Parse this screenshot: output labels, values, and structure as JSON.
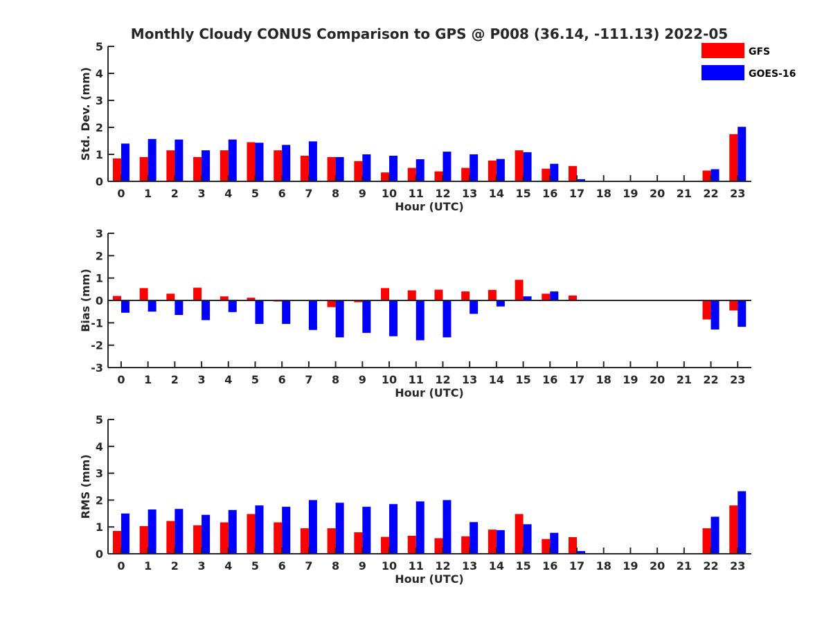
{
  "figure": {
    "title": "Monthly Cloudy CONUS Comparison to GPS @ P008 (36.14, -111.13) 2022-05"
  },
  "legend": {
    "placement": "top-right",
    "entries": [
      {
        "name": "GFS",
        "color": "#ff0000"
      },
      {
        "name": "GOES-16",
        "color": "#0000ff"
      }
    ]
  },
  "chart_data": [
    {
      "type": "bar",
      "xlabel": "Hour (UTC)",
      "ylabel": "Std. Dev. (mm)",
      "ylim": [
        0,
        5
      ],
      "yticks": [
        0,
        1,
        2,
        3,
        4,
        5
      ],
      "categories": [
        "0",
        "1",
        "2",
        "3",
        "4",
        "5",
        "6",
        "7",
        "8",
        "9",
        "10",
        "11",
        "12",
        "13",
        "14",
        "15",
        "16",
        "17",
        "18",
        "19",
        "20",
        "21",
        "22",
        "23"
      ],
      "series": [
        {
          "name": "GFS",
          "color": "#ff0000",
          "values": [
            0.85,
            0.9,
            1.15,
            0.9,
            1.15,
            1.45,
            1.15,
            0.95,
            0.9,
            0.75,
            0.33,
            0.5,
            0.37,
            0.5,
            0.77,
            1.15,
            0.47,
            0.57,
            null,
            null,
            null,
            null,
            0.4,
            1.75
          ]
        },
        {
          "name": "GOES-16",
          "color": "#0000ff",
          "values": [
            1.4,
            1.57,
            1.55,
            1.15,
            1.55,
            1.43,
            1.35,
            1.48,
            0.9,
            1.0,
            0.95,
            0.82,
            1.1,
            1.0,
            0.83,
            1.08,
            0.65,
            0.08,
            null,
            null,
            null,
            null,
            0.45,
            2.02
          ]
        }
      ]
    },
    {
      "type": "bar",
      "xlabel": "Hour (UTC)",
      "ylabel": "Bias (mm)",
      "ylim": [
        -3,
        3
      ],
      "yticks": [
        -3,
        -2,
        -1,
        0,
        1,
        2,
        3
      ],
      "categories": [
        "0",
        "1",
        "2",
        "3",
        "4",
        "5",
        "6",
        "7",
        "8",
        "9",
        "10",
        "11",
        "12",
        "13",
        "14",
        "15",
        "16",
        "17",
        "18",
        "19",
        "20",
        "21",
        "22",
        "23"
      ],
      "series": [
        {
          "name": "GFS",
          "color": "#ff0000",
          "values": [
            0.2,
            0.55,
            0.3,
            0.57,
            0.18,
            0.12,
            -0.05,
            0.0,
            -0.3,
            -0.08,
            0.55,
            0.45,
            0.48,
            0.4,
            0.47,
            0.92,
            0.3,
            0.22,
            null,
            null,
            null,
            null,
            -0.85,
            -0.45
          ]
        },
        {
          "name": "GOES-16",
          "color": "#0000ff",
          "values": [
            -0.55,
            -0.5,
            -0.65,
            -0.88,
            -0.52,
            -1.05,
            -1.05,
            -1.32,
            -1.65,
            -1.45,
            -1.6,
            -1.78,
            -1.65,
            -0.6,
            -0.27,
            0.18,
            0.4,
            0.0,
            null,
            null,
            null,
            null,
            -1.3,
            -1.18
          ]
        }
      ]
    },
    {
      "type": "bar",
      "xlabel": "Hour (UTC)",
      "ylabel": "RMS (mm)",
      "ylim": [
        0,
        5
      ],
      "yticks": [
        0,
        1,
        2,
        3,
        4,
        5
      ],
      "categories": [
        "0",
        "1",
        "2",
        "3",
        "4",
        "5",
        "6",
        "7",
        "8",
        "9",
        "10",
        "11",
        "12",
        "13",
        "14",
        "15",
        "16",
        "17",
        "18",
        "19",
        "20",
        "21",
        "22",
        "23"
      ],
      "series": [
        {
          "name": "GFS",
          "color": "#ff0000",
          "values": [
            0.85,
            1.03,
            1.22,
            1.06,
            1.17,
            1.48,
            1.17,
            0.95,
            0.95,
            0.8,
            0.63,
            0.67,
            0.58,
            0.65,
            0.9,
            1.48,
            0.55,
            0.62,
            null,
            null,
            null,
            null,
            0.95,
            1.8
          ]
        },
        {
          "name": "GOES-16",
          "color": "#0000ff",
          "values": [
            1.5,
            1.65,
            1.67,
            1.45,
            1.63,
            1.8,
            1.75,
            2.0,
            1.9,
            1.75,
            1.85,
            1.95,
            2.0,
            1.18,
            0.88,
            1.1,
            0.78,
            0.1,
            null,
            null,
            null,
            null,
            1.38,
            2.33
          ]
        }
      ]
    }
  ]
}
